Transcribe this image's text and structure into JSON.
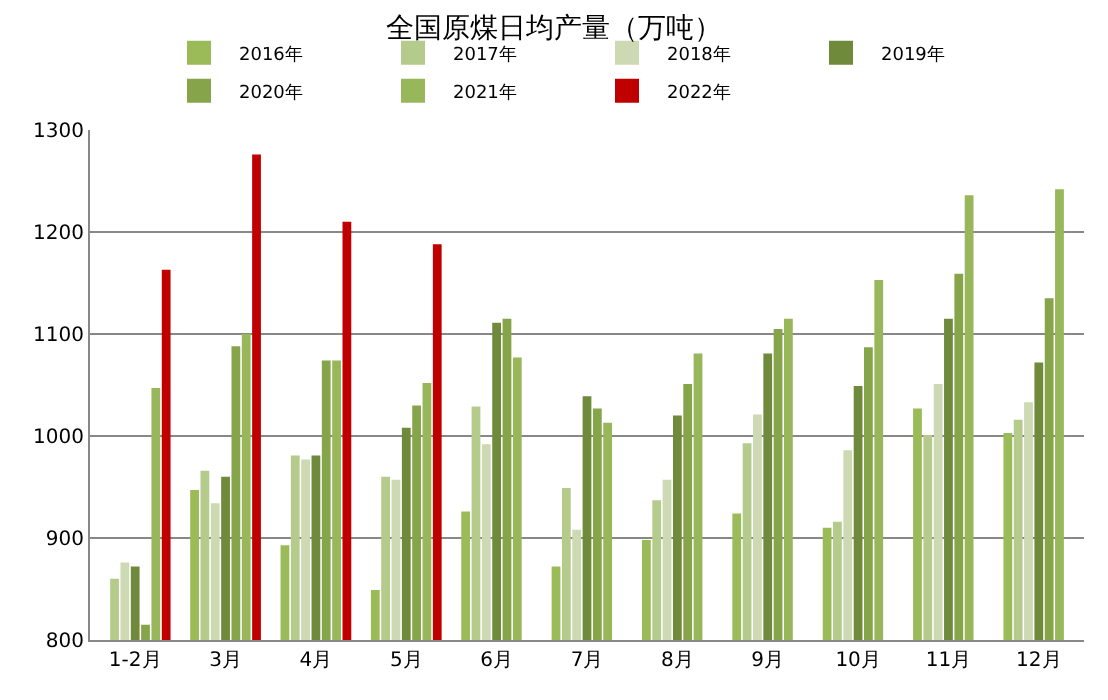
{
  "chart_data": {
    "type": "bar",
    "title": "全国原煤日均产量（万吨）",
    "categories": [
      "1-2月",
      "3月",
      "4月",
      "5月",
      "6月",
      "7月",
      "8月",
      "9月",
      "10月",
      "11月",
      "12月"
    ],
    "series": [
      {
        "name": "2016年",
        "color": "#9bbb59",
        "values": [
          null,
          947,
          893,
          849,
          926,
          872,
          898,
          924,
          910,
          1027,
          1003
        ]
      },
      {
        "name": "2017年",
        "color": "#b5cb8b",
        "values": [
          860,
          966,
          981,
          960,
          1029,
          949,
          937,
          993,
          916,
          1001,
          1016
        ]
      },
      {
        "name": "2018年",
        "color": "#cdd9b2",
        "values": [
          876,
          934,
          977,
          957,
          992,
          908,
          957,
          1021,
          986,
          1051,
          1033
        ]
      },
      {
        "name": "2019年",
        "color": "#6f8a3b",
        "values": [
          872,
          960,
          981,
          1008,
          1111,
          1039,
          1020,
          1081,
          1049,
          1115,
          1072
        ]
      },
      {
        "name": "2020年",
        "color": "#86a44a",
        "values": [
          815,
          1088,
          1074,
          1030,
          1115,
          1027,
          1051,
          1105,
          1087,
          1159,
          1135
        ]
      },
      {
        "name": "2021年",
        "color": "#98b65a",
        "values": [
          1047,
          1100,
          1074,
          1052,
          1077,
          1013,
          1081,
          1115,
          1153,
          1236,
          1242
        ]
      },
      {
        "name": "2022年",
        "color": "#c00000",
        "values": [
          1163,
          1276,
          1210,
          1188,
          null,
          null,
          null,
          null,
          null,
          null,
          null
        ]
      }
    ],
    "ylim": [
      800,
      1300
    ],
    "yticks": [
      800,
      900,
      1000,
      1100,
      1200,
      1300
    ],
    "grid": "y",
    "legend": "top"
  }
}
